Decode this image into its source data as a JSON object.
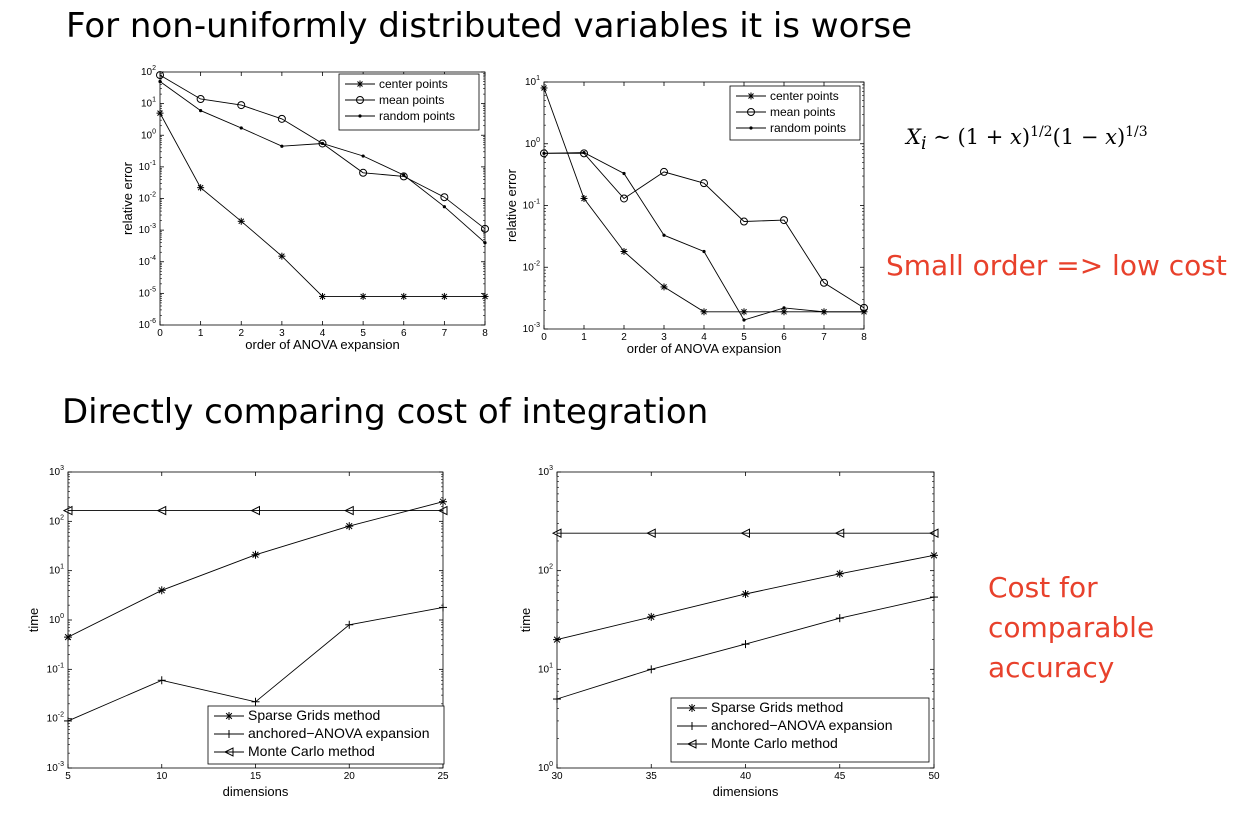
{
  "slide": {
    "heading_top": "For non-uniformly distributed variables it is worse",
    "heading_bottom": "Directly comparing cost of integration",
    "formula": {
      "lhs": "X",
      "sub": "i",
      "rel": " ∼ (1 + ",
      "x1": "x",
      "p1": ")",
      "e1": "1/2",
      "mid": "(1 − ",
      "x2": "x",
      "p2": ")",
      "e2": "1/3"
    },
    "note_small_order": "Small order => low cost",
    "note_cost": [
      "Cost for",
      "comparable",
      "accuracy"
    ]
  },
  "colors": {
    "accent": "#e8412c",
    "line": "#000000"
  },
  "chart_data": [
    {
      "type": "line",
      "yscale": "log",
      "xlabel": "order of ANOVA expansion",
      "ylabel": "relative error",
      "x": [
        0,
        1,
        2,
        3,
        4,
        5,
        6,
        7,
        8
      ],
      "xlim": [
        0,
        8
      ],
      "ylim": [
        1e-06,
        100
      ],
      "xticks": [
        "0",
        "1",
        "2",
        "3",
        "4",
        "5",
        "6",
        "7",
        "8"
      ],
      "yticks": [
        {
          "b": "10",
          "e": "-6"
        },
        {
          "b": "10",
          "e": "-5"
        },
        {
          "b": "10",
          "e": "-4"
        },
        {
          "b": "10",
          "e": "-3"
        },
        {
          "b": "10",
          "e": "-2"
        },
        {
          "b": "10",
          "e": "-1"
        },
        {
          "b": "10",
          "e": "0"
        },
        {
          "b": "10",
          "e": "1"
        },
        {
          "b": "10",
          "e": "2"
        }
      ],
      "legend_position": "top-right",
      "series": [
        {
          "name": "center points",
          "marker": "star",
          "values": [
            5,
            0.022,
            0.0019,
            0.00015,
            8e-06,
            8e-06,
            8e-06,
            8e-06,
            8e-06
          ]
        },
        {
          "name": "mean points",
          "marker": "circle",
          "values": [
            80,
            14,
            9,
            3.3,
            0.55,
            0.065,
            0.05,
            0.011,
            0.0011
          ]
        },
        {
          "name": "random points",
          "marker": "dot",
          "values": [
            50,
            6,
            1.7,
            0.45,
            0.55,
            0.22,
            0.055,
            0.0055,
            0.0004
          ]
        }
      ]
    },
    {
      "type": "line",
      "yscale": "log",
      "xlabel": "order of ANOVA expansion",
      "ylabel": "relative error",
      "x": [
        0,
        1,
        2,
        3,
        4,
        5,
        6,
        7,
        8
      ],
      "xlim": [
        0,
        8
      ],
      "ylim": [
        0.001,
        10
      ],
      "xticks": [
        "0",
        "1",
        "2",
        "3",
        "4",
        "5",
        "6",
        "7",
        "8"
      ],
      "yticks": [
        {
          "b": "10",
          "e": "-3"
        },
        {
          "b": "10",
          "e": "-2"
        },
        {
          "b": "10",
          "e": "-1"
        },
        {
          "b": "10",
          "e": "0"
        },
        {
          "b": "10",
          "e": "1"
        }
      ],
      "legend_position": "top-right",
      "series": [
        {
          "name": "center points",
          "marker": "star",
          "values": [
            8,
            0.13,
            0.018,
            0.0048,
            0.0019,
            0.0019,
            0.0019,
            0.0019,
            0.0019
          ]
        },
        {
          "name": "mean points",
          "marker": "circle",
          "values": [
            0.7,
            0.7,
            0.13,
            0.35,
            0.23,
            0.055,
            0.058,
            0.0056,
            0.0022
          ]
        },
        {
          "name": "random points",
          "marker": "dot",
          "values": [
            0.7,
            0.72,
            0.33,
            0.033,
            0.018,
            0.0014,
            0.0022,
            0.0019,
            0.0019
          ]
        }
      ]
    },
    {
      "type": "line",
      "yscale": "log",
      "xlabel": "dimensions",
      "ylabel": "time",
      "x": [
        5,
        10,
        15,
        20,
        25
      ],
      "xlim": [
        5,
        25
      ],
      "ylim": [
        0.001,
        1000
      ],
      "xticks": [
        "5",
        "10",
        "15",
        "20",
        "25"
      ],
      "yticks": [
        {
          "b": "10",
          "e": "-3"
        },
        {
          "b": "10",
          "e": "-2"
        },
        {
          "b": "10",
          "e": "-1"
        },
        {
          "b": "10",
          "e": "0"
        },
        {
          "b": "10",
          "e": "1"
        },
        {
          "b": "10",
          "e": "2"
        },
        {
          "b": "10",
          "e": "3"
        }
      ],
      "legend_position": "bottom-right",
      "series": [
        {
          "name": "Sparse Grids method",
          "marker": "star",
          "values": [
            0.45,
            4,
            21,
            80,
            250
          ]
        },
        {
          "name": "anchored−ANOVA expansion",
          "marker": "plus",
          "values": [
            0.009,
            0.06,
            0.022,
            0.8,
            1.8
          ]
        },
        {
          "name": "Monte Carlo method",
          "marker": "triangle",
          "values": [
            165,
            165,
            165,
            165,
            165
          ]
        }
      ]
    },
    {
      "type": "line",
      "yscale": "log",
      "xlabel": "dimensions",
      "ylabel": "time",
      "x": [
        30,
        35,
        40,
        45,
        50
      ],
      "xlim": [
        30,
        50
      ],
      "ylim": [
        1,
        1000
      ],
      "xticks": [
        "30",
        "35",
        "40",
        "45",
        "50"
      ],
      "yticks": [
        {
          "b": "10",
          "e": "0"
        },
        {
          "b": "10",
          "e": "1"
        },
        {
          "b": "10",
          "e": "2"
        },
        {
          "b": "10",
          "e": "3"
        }
      ],
      "legend_position": "bottom-left",
      "series": [
        {
          "name": "Sparse Grids method",
          "marker": "star",
          "values": [
            20,
            34,
            58,
            93,
            143
          ]
        },
        {
          "name": "anchored−ANOVA expansion",
          "marker": "plus",
          "values": [
            5,
            10,
            18,
            33,
            54
          ]
        },
        {
          "name": "Monte Carlo method",
          "marker": "triangle",
          "values": [
            240,
            240,
            240,
            240,
            240
          ]
        }
      ]
    }
  ]
}
